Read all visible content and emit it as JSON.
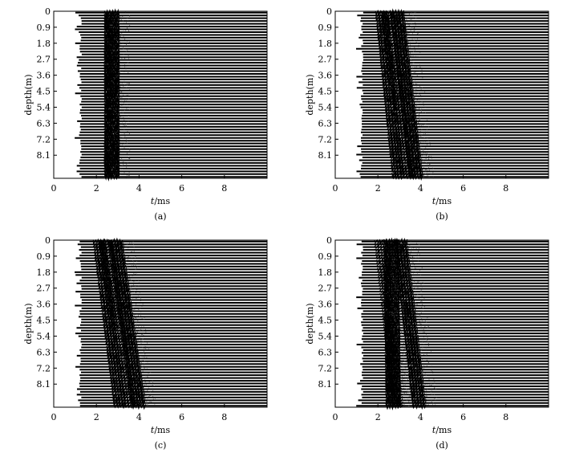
{
  "chart_data": [
    {
      "type": "seismic-wiggle",
      "caption": "(a)",
      "xlabel_italic": "t",
      "xlabel_unit": "/ms",
      "ylabel": "depth(m)",
      "xlim": [
        0,
        10
      ],
      "xticks": [
        "0",
        "2",
        "4",
        "6",
        "8"
      ],
      "yticks": [
        "0",
        "0.9",
        "1.8",
        "2.7",
        "3.6",
        "4.5",
        "5.4",
        "6.3",
        "7.2",
        "8.1"
      ],
      "ylim": [
        0,
        9.4
      ],
      "trace_start": 1.2,
      "arrivals": [
        {
          "t_top": 2.55,
          "t_bottom": 2.55,
          "strength": 1.0
        }
      ]
    },
    {
      "type": "seismic-wiggle",
      "caption": "(b)",
      "xlabel_italic": "t",
      "xlabel_unit": "/ms",
      "ylabel": "depth(m)",
      "xlim": [
        0,
        10
      ],
      "xticks": [
        "0",
        "2",
        "4",
        "6",
        "8"
      ],
      "yticks": [
        "0",
        "0.9",
        "1.8",
        "2.7",
        "3.6",
        "4.5",
        "5.4",
        "6.3",
        "7.2",
        "8.1"
      ],
      "ylim": [
        0,
        9.4
      ],
      "trace_start": 1.2,
      "arrivals": [
        {
          "t_top": 2.05,
          "t_bottom": 2.85,
          "strength": 0.7
        },
        {
          "t_top": 2.35,
          "t_bottom": 3.25,
          "strength": 0.6
        },
        {
          "t_top": 2.75,
          "t_bottom": 3.65,
          "strength": 0.9
        }
      ]
    },
    {
      "type": "seismic-wiggle",
      "caption": "(c)",
      "xlabel_italic": "t",
      "xlabel_unit": "/ms",
      "ylabel": "depth(m)",
      "xlim": [
        0,
        10
      ],
      "xticks": [
        "0",
        "2",
        "4",
        "6",
        "8"
      ],
      "yticks": [
        "0",
        "0.9",
        "1.8",
        "2.7",
        "3.6",
        "4.5",
        "5.4",
        "6.3",
        "7.2",
        "8.1"
      ],
      "ylim": [
        0,
        9.4
      ],
      "trace_start": 1.2,
      "arrivals": [
        {
          "t_top": 2.0,
          "t_bottom": 3.0,
          "strength": 0.7
        },
        {
          "t_top": 2.3,
          "t_bottom": 3.4,
          "strength": 0.6
        },
        {
          "t_top": 2.75,
          "t_bottom": 3.85,
          "strength": 0.9
        }
      ]
    },
    {
      "type": "seismic-wiggle",
      "caption": "(d)",
      "xlabel_italic": "t",
      "xlabel_unit": "/ms",
      "ylabel": "depth(m)",
      "xlim": [
        0,
        10
      ],
      "xticks": [
        "0",
        "2",
        "4",
        "6",
        "8"
      ],
      "yticks": [
        "0",
        "0.9",
        "1.8",
        "2.7",
        "3.6",
        "4.5",
        "5.4",
        "6.3",
        "7.2",
        "8.1"
      ],
      "ylim": [
        0,
        9.4
      ],
      "trace_start": 1.2,
      "arrivals": [
        {
          "t_top": 2.45,
          "t_bottom": 2.55,
          "strength": 1.0
        },
        {
          "t_top": 2.0,
          "t_bottom": 2.85,
          "strength": 0.5
        },
        {
          "t_top": 2.9,
          "t_bottom": 3.8,
          "strength": 0.8
        }
      ]
    }
  ]
}
